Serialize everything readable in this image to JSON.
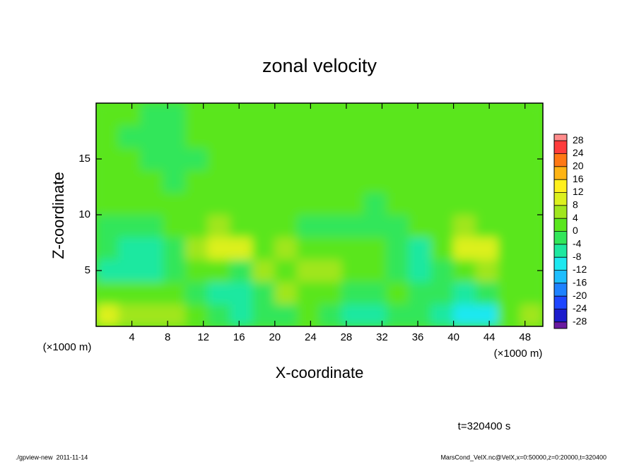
{
  "chart_data": {
    "type": "heatmap",
    "title": "zonal velocity",
    "xlabel": "X-coordinate",
    "ylabel": "Z-coordinate",
    "x_unit_label": "(×1000 m)",
    "annotation": "t=320400 s",
    "footer_left": "./gpview-new  2011-11-14",
    "footer_right": "MarsCond_VelX.nc@VelX,x=0:50000,z=0:20000,t=320400",
    "xlim": [
      0,
      50
    ],
    "xticks": [
      4,
      8,
      12,
      16,
      20,
      24,
      28,
      32,
      36,
      40,
      44,
      48
    ],
    "ylim": [
      0,
      20
    ],
    "yticks": [
      5,
      10,
      15
    ],
    "x_edges": [
      0,
      2.5,
      5,
      7.5,
      10,
      12.5,
      15,
      17.5,
      20,
      22.5,
      25,
      27.5,
      30,
      32.5,
      35,
      37.5,
      40,
      42.5,
      45,
      47.5,
      50
    ],
    "y_edges": [
      0,
      2,
      4,
      6,
      8,
      10,
      12,
      14,
      16,
      18,
      20
    ],
    "z": [
      [
        9,
        6,
        6,
        4,
        2,
        -3,
        -7,
        -4,
        -2,
        0,
        -2,
        -5,
        -7,
        -2,
        -3,
        -5,
        -12,
        -10,
        0,
        6
      ],
      [
        2,
        3,
        3,
        1,
        -2,
        -8,
        -6,
        -2,
        4,
        3,
        2,
        -1,
        -3,
        1,
        -2,
        -3,
        -5,
        -4,
        1,
        3
      ],
      [
        -6,
        -8,
        -7,
        -3,
        1,
        0,
        -1,
        5,
        3,
        6,
        5,
        2,
        0,
        -3,
        -8,
        -3,
        2,
        4,
        1,
        0
      ],
      [
        -4,
        -6,
        -6,
        -2,
        4,
        10,
        9,
        3,
        5,
        2,
        3,
        1,
        0,
        -4,
        -6,
        0,
        10,
        8,
        2,
        1
      ],
      [
        -1,
        -2,
        -1,
        0,
        2,
        4,
        3,
        0,
        1,
        -2,
        -1,
        -2,
        -3,
        -1,
        0,
        2,
        4,
        3,
        1,
        0
      ],
      [
        1,
        2,
        0,
        1,
        2,
        2,
        1,
        2,
        1,
        0,
        1,
        0,
        -1,
        1,
        2,
        1,
        2,
        1,
        2,
        1
      ],
      [
        2,
        1,
        0,
        -1,
        1,
        2,
        1,
        1,
        2,
        1,
        1,
        2,
        1,
        2,
        3,
        1,
        0,
        1,
        2,
        1
      ],
      [
        1,
        0,
        -2,
        -3,
        -1,
        1,
        0,
        1,
        1,
        2,
        1,
        2,
        1,
        2,
        2,
        1,
        0,
        1,
        1,
        2
      ],
      [
        1,
        -1,
        -2,
        -2,
        0,
        1,
        1,
        1,
        2,
        2,
        1,
        2,
        1,
        2,
        1,
        1,
        1,
        1,
        1,
        2
      ],
      [
        1,
        0,
        -1,
        -1,
        0,
        1,
        1,
        2,
        2,
        1,
        2,
        1,
        2,
        1,
        2,
        1,
        2,
        1,
        2,
        1
      ]
    ],
    "levels": [
      -30,
      -28,
      -24,
      -20,
      -16,
      -12,
      -8,
      -4,
      0,
      4,
      8,
      12,
      16,
      20,
      24,
      28,
      30
    ],
    "colors": [
      "#6a1aa0",
      "#1c1ccc",
      "#1e46ff",
      "#1e82ff",
      "#1ebeff",
      "#1ee8f0",
      "#1ee8a0",
      "#32e65a",
      "#5ae61e",
      "#a0e61e",
      "#dcf01e",
      "#fff01e",
      "#ffb414",
      "#ff7814",
      "#ff3c3c",
      "#ff8c8c"
    ],
    "colorbar_ticks": [
      28,
      24,
      20,
      16,
      12,
      8,
      4,
      0,
      -4,
      -8,
      -12,
      -16,
      -20,
      -24,
      -28
    ]
  }
}
